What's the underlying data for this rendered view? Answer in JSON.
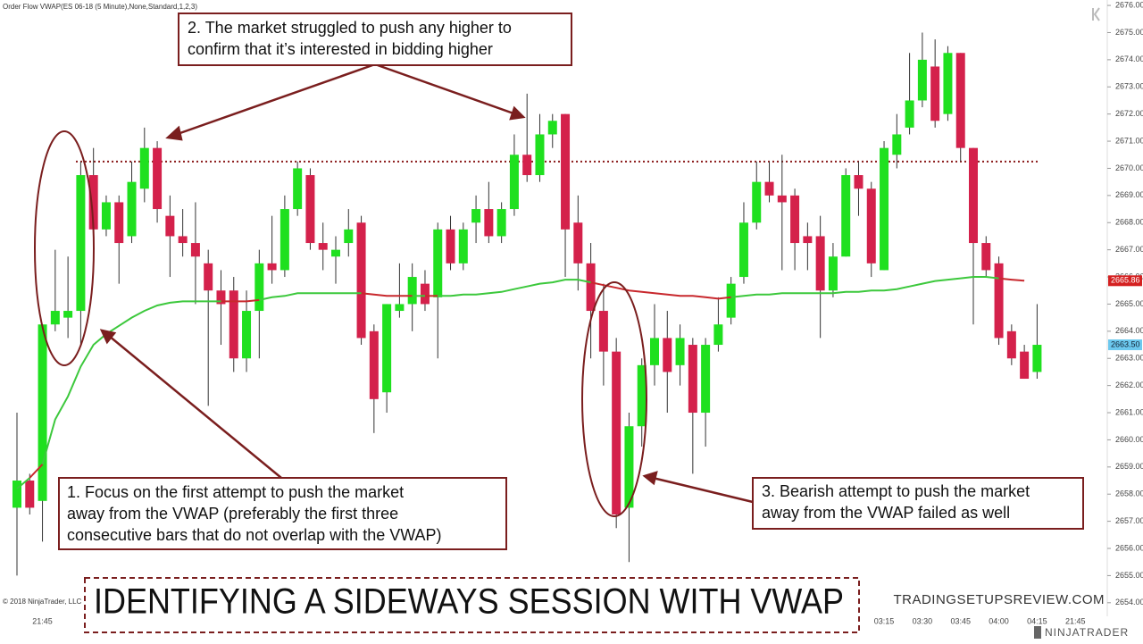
{
  "header": "Order Flow VWAP(ES 06-18 (5 Minute),None,Standard,1,2,3)",
  "copyright": "© 2018 NinjaTrader, LLC",
  "title": "IDENTIFYING A SIDEWAYS SESSION WITH VWAP",
  "site": "TRADINGSETUPSREVIEW.COM",
  "logo": "NINJATRADER",
  "annotations": [
    {
      "lines": [
        "1. Focus on the first attempt to push the market",
        "away from the VWAP (preferably the first three",
        "consecutive bars that do not overlap with the VWAP)"
      ]
    },
    {
      "lines": [
        "2. The market struggled to push any higher to",
        "confirm that it’s interested in bidding higher"
      ]
    },
    {
      "lines": [
        "3. Bearish attempt to push the market",
        "away from the VWAP failed as well"
      ]
    }
  ],
  "chart_data": {
    "type": "candlestick",
    "up_color": "#1fe01f",
    "down_color": "#d4214b",
    "wick_color": "#333333",
    "categories": [
      null,
      null,
      "21:45",
      null,
      null,
      null,
      null,
      null,
      null,
      null,
      null,
      null,
      null,
      null,
      null,
      null,
      null,
      null,
      null,
      null,
      null,
      null,
      null,
      null,
      null,
      null,
      null,
      null,
      null,
      null,
      null,
      null,
      null,
      null,
      null,
      null,
      null,
      null,
      null,
      null,
      null,
      null,
      null,
      null,
      null,
      null,
      null,
      null,
      null,
      null,
      null,
      null,
      null,
      null,
      null,
      null,
      null,
      null,
      null,
      null,
      null,
      null,
      null,
      null,
      null,
      null,
      null,
      null,
      "03:15",
      null,
      null,
      "03:30",
      null,
      null,
      "03:45",
      null,
      null,
      "04:00",
      null,
      null,
      "04:15",
      null,
      null,
      "21:45"
    ],
    "open": [
      2657.5,
      2658.5,
      2657.75,
      2664.25,
      2664.5,
      2664.75,
      2669.75,
      2667.75,
      2668.75,
      2667.5,
      2669.25,
      2670.75,
      2668.25,
      2667.5,
      2667.25,
      2666.5,
      2665.5,
      2665.5,
      2663,
      2664.75,
      2666.5,
      2666.25,
      2668.5,
      2669.75,
      2667.25,
      2666.75,
      2667.25,
      2668,
      2664,
      2661.75,
      2664.75,
      2665,
      2665.75,
      2665.25,
      2667.75,
      2666.5,
      2668,
      2668.5,
      2667.5,
      2668.5,
      2670.5,
      2669.75,
      2671.25,
      2672,
      2668,
      2666.5,
      2664.75,
      2663.25,
      2657.5,
      2660.5,
      2662.75,
      2663.75,
      2662.75,
      2663.5,
      2661,
      2663.5,
      2664.5,
      2666,
      2668,
      2669.5,
      2669,
      2669,
      2667.5,
      2667.5,
      2665.5,
      2666.75,
      2669.75,
      2669.25,
      2666.25,
      2670.5,
      2671.5,
      2672.5,
      2673.75,
      2672,
      2674.25,
      2670.75,
      2667.25,
      2666.5,
      2664,
      2663.25,
      2662.5,
      null,
      null,
      null
    ],
    "high": [
      2661,
      2658.75,
      2664.25,
      2667,
      2666.75,
      2670.25,
      2670.75,
      2669,
      2669,
      2670.25,
      2671.5,
      2671,
      2669,
      2668.5,
      2668.75,
      2667,
      2666.25,
      2666,
      2665.5,
      2667,
      2668.25,
      2669,
      2670.25,
      2670,
      2668,
      2667.5,
      2668.5,
      2668.25,
      2664.25,
      2665,
      2666.5,
      2666.5,
      2666.25,
      2668,
      2668.25,
      2668,
      2669,
      2669.5,
      2668.75,
      2671.25,
      2672.75,
      2672,
      2672,
      2672,
      2669,
      2667.25,
      2665.75,
      2663.75,
      2661,
      2663,
      2665,
      2664.75,
      2664.25,
      2663.75,
      2663.75,
      2665.25,
      2666,
      2668.75,
      2670.25,
      2670.25,
      2670.5,
      2669.25,
      2668,
      2668.25,
      2667.25,
      2670,
      2670.25,
      2669.5,
      2671,
      2672,
      2674.25,
      2675,
      2674.75,
      2674.5,
      2674.25,
      2670.75,
      2667.5,
      2666.75,
      2664.25,
      2663.5,
      2665,
      null,
      null,
      null
    ],
    "low": [
      2655,
      2657.25,
      2656.25,
      2664,
      2663.75,
      2663.5,
      2667.5,
      2667.5,
      2665.75,
      2667.25,
      2668.75,
      2668,
      2666,
      2666.75,
      2665,
      2661.25,
      2663.5,
      2662.5,
      2662.5,
      2663,
      2665.75,
      2666,
      2668.25,
      2667,
      2666.25,
      2665.75,
      2666.75,
      2663.5,
      2660.25,
      2661,
      2664.5,
      2664,
      2664.75,
      2663,
      2666.25,
      2666.25,
      2667.25,
      2667.25,
      2667.25,
      2668.25,
      2669.5,
      2669.5,
      2670.75,
      2666,
      2665.5,
      2663,
      2662,
      2656.75,
      2655.5,
      2659.75,
      2662,
      2661,
      2662,
      2658.75,
      2659.75,
      2663.25,
      2664.25,
      2665.75,
      2667.75,
      2668.75,
      2666.25,
      2666.25,
      2666.25,
      2663.75,
      2665.25,
      2666.75,
      2668.25,
      2666,
      2666.25,
      2670,
      2671.25,
      2672.25,
      2671.5,
      2671.75,
      2670.25,
      2664.25,
      2666,
      2663.5,
      2662.75,
      2662.25,
      2662.25,
      null,
      null,
      null
    ],
    "close": [
      2658.5,
      2657.5,
      2664.25,
      2664.75,
      2664.75,
      2669.75,
      2667.75,
      2668.75,
      2667.25,
      2669.5,
      2670.75,
      2668.5,
      2667.5,
      2667.25,
      2666.75,
      2665.5,
      2665,
      2663,
      2664.75,
      2666.5,
      2666.25,
      2668.5,
      2670,
      2667.25,
      2667,
      2667,
      2667.75,
      2663.75,
      2661.5,
      2665,
      2665,
      2666,
      2665,
      2667.75,
      2666.5,
      2667.75,
      2668.5,
      2667.5,
      2668.5,
      2670.5,
      2669.75,
      2671.25,
      2671.75,
      2667.75,
      2666.5,
      2664.75,
      2663.25,
      2657.25,
      2660.5,
      2662.75,
      2663.75,
      2662.5,
      2663.75,
      2661,
      2663.5,
      2664.25,
      2665.75,
      2668,
      2669.5,
      2669,
      2668.75,
      2667.25,
      2667.25,
      2665.5,
      2666.75,
      2669.75,
      2669.25,
      2666.5,
      2670.75,
      2671.25,
      2672.5,
      2674,
      2671.75,
      2674.25,
      2670.75,
      2667.25,
      2666.25,
      2663.75,
      2663,
      2662.25,
      2663.5,
      null,
      null,
      null
    ],
    "vwap": {
      "above_color": "#3cc83c",
      "below_color": "#c8282d",
      "values": [
        2658.2,
        2658.6,
        2659.1,
        2660.75,
        2661.6,
        2662.7,
        2663.5,
        2663.9,
        2664.2,
        2664.5,
        2664.75,
        2664.95,
        2665.05,
        2665.1,
        2665.1,
        2665.1,
        2665.1,
        2665.1,
        2665.1,
        2665.15,
        2665.25,
        2665.3,
        2665.4,
        2665.4,
        2665.4,
        2665.4,
        2665.4,
        2665.4,
        2665.35,
        2665.3,
        2665.3,
        2665.3,
        2665.3,
        2665.3,
        2665.3,
        2665.35,
        2665.35,
        2665.4,
        2665.45,
        2665.55,
        2665.65,
        2665.75,
        2665.8,
        2665.9,
        2665.9,
        2665.8,
        2665.7,
        2665.6,
        2665.5,
        2665.45,
        2665.4,
        2665.35,
        2665.3,
        2665.3,
        2665.25,
        2665.2,
        2665.25,
        2665.3,
        2665.35,
        2665.35,
        2665.4,
        2665.4,
        2665.4,
        2665.4,
        2665.4,
        2665.45,
        2665.45,
        2665.5,
        2665.5,
        2665.55,
        2665.65,
        2665.75,
        2665.85,
        2665.9,
        2665.95,
        2666,
        2666,
        2665.95,
        2665.9,
        2665.86,
        null,
        null,
        null,
        null
      ]
    },
    "resistance": {
      "value": 2670.25,
      "color": "#8b1a1a"
    },
    "vwap_marker": {
      "value": 2665.86,
      "label": "2665.86",
      "color": "#d42020"
    },
    "price_marker": {
      "value": 2663.5,
      "label": "2663.50",
      "color": "#6cc8ee"
    },
    "ylim": [
      2653.5,
      2676.2
    ],
    "yticks": [
      {
        "value": 2654,
        "label": "2654.00"
      },
      {
        "value": 2655,
        "label": "2655.00"
      },
      {
        "value": 2656,
        "label": "2656.00"
      },
      {
        "value": 2657,
        "label": "2657.00"
      },
      {
        "value": 2658,
        "label": "2658.00"
      },
      {
        "value": 2659,
        "label": "2659.00"
      },
      {
        "value": 2660,
        "label": "2660.00"
      },
      {
        "value": 2661,
        "label": "2661.00"
      },
      {
        "value": 2662,
        "label": "2662.00"
      },
      {
        "value": 2663,
        "label": "2663.00"
      },
      {
        "value": 2664,
        "label": "2664.00"
      },
      {
        "value": 2665,
        "label": "2665.00"
      },
      {
        "value": 2666,
        "label": "2666.00"
      },
      {
        "value": 2667,
        "label": "2667.00"
      },
      {
        "value": 2668,
        "label": "2668.00"
      },
      {
        "value": 2669,
        "label": "2669.00"
      },
      {
        "value": 2670,
        "label": "2670.00"
      },
      {
        "value": 2671,
        "label": "2671.00"
      },
      {
        "value": 2672,
        "label": "2672.00"
      },
      {
        "value": 2673,
        "label": "2673.00"
      },
      {
        "value": 2674,
        "label": "2674.00"
      },
      {
        "value": 2675,
        "label": "2675.00"
      },
      {
        "value": 2676,
        "label": "2676.00"
      }
    ]
  }
}
